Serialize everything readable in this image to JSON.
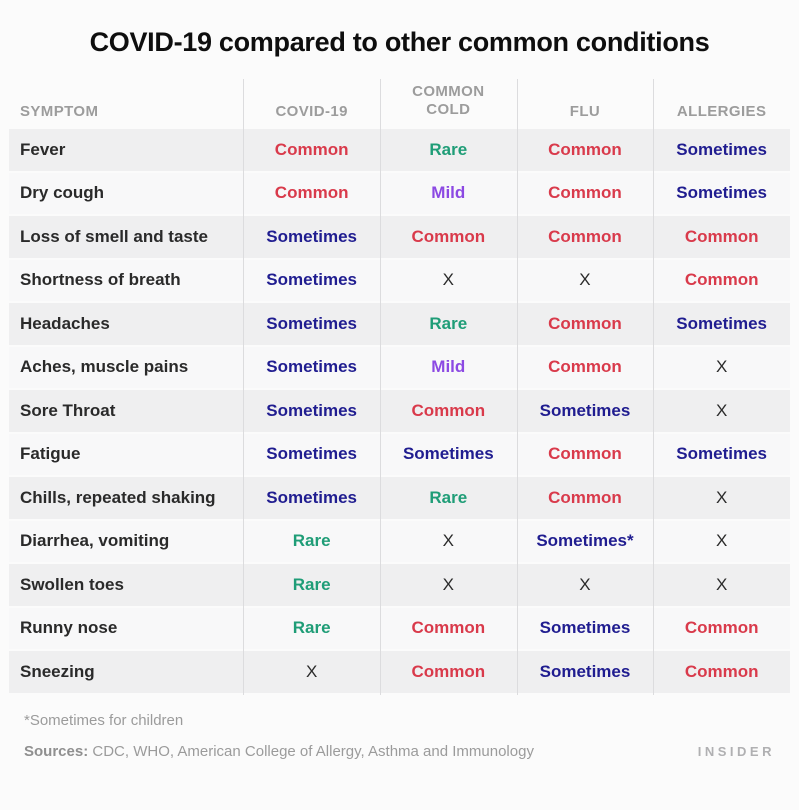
{
  "chart_data": {
    "type": "table",
    "title": "COVID-19 compared to other common conditions",
    "columns": [
      "SYMPTOM",
      "COVID-19",
      "COMMON COLD",
      "FLU",
      "ALLERGIES"
    ],
    "rows": [
      {
        "symptom": "Fever",
        "values": [
          "Common",
          "Rare",
          "Common",
          "Sometimes"
        ]
      },
      {
        "symptom": "Dry cough",
        "values": [
          "Common",
          "Mild",
          "Common",
          "Sometimes"
        ]
      },
      {
        "symptom": "Loss of smell and taste",
        "values": [
          "Sometimes",
          "Common",
          "Common",
          "Common"
        ]
      },
      {
        "symptom": "Shortness of breath",
        "values": [
          "Sometimes",
          "X",
          "X",
          "Common"
        ]
      },
      {
        "symptom": "Headaches",
        "values": [
          "Sometimes",
          "Rare",
          "Common",
          "Sometimes"
        ]
      },
      {
        "symptom": "Aches, muscle pains",
        "values": [
          "Sometimes",
          "Mild",
          "Common",
          "X"
        ]
      },
      {
        "symptom": "Sore Throat",
        "values": [
          "Sometimes",
          "Common",
          "Sometimes",
          "X"
        ]
      },
      {
        "symptom": "Fatigue",
        "values": [
          "Sometimes",
          "Sometimes",
          "Common",
          "Sometimes"
        ]
      },
      {
        "symptom": "Chills, repeated shaking",
        "values": [
          "Sometimes",
          "Rare",
          "Common",
          "X"
        ]
      },
      {
        "symptom": "Diarrhea, vomiting",
        "values": [
          "Rare",
          "X",
          "Sometimes*",
          "X"
        ]
      },
      {
        "symptom": "Swollen toes",
        "values": [
          "Rare",
          "X",
          "X",
          "X"
        ]
      },
      {
        "symptom": "Runny nose",
        "values": [
          "Rare",
          "Common",
          "Sometimes",
          "Common"
        ]
      },
      {
        "symptom": "Sneezing",
        "values": [
          "X",
          "Common",
          "Sometimes",
          "Common"
        ]
      }
    ],
    "status_colors": {
      "common": "#d93a4b",
      "rare": "#1f9d77",
      "sometimes": "#201d90",
      "mild": "#8c49e3",
      "x": "#2b2b2b"
    },
    "layout_hints": {
      "grid": "row-striped",
      "value_alignment": "center"
    }
  },
  "footnote": "*Sometimes for children",
  "sources_label": "Sources:",
  "sources_text": "CDC, WHO,  American College of Allergy, Asthma and Immunology",
  "brand": "INSIDER"
}
